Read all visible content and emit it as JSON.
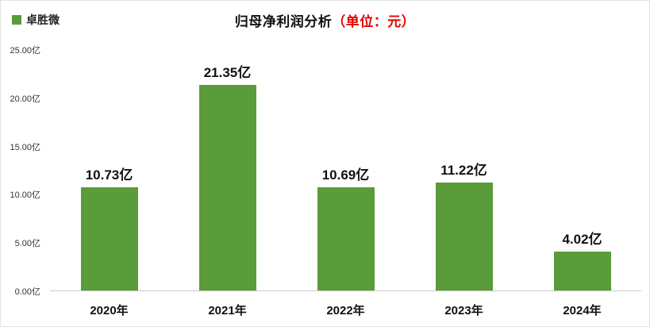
{
  "legend": {
    "label": "卓胜微",
    "color": "#5a9b3a"
  },
  "title": {
    "main": "归母净利润分析",
    "unit": "（单位：元）",
    "unit_color": "#e60000"
  },
  "chart_data": {
    "type": "bar",
    "title": "归母净利润分析（单位：元）",
    "categories": [
      "2020年",
      "2021年",
      "2022年",
      "2023年",
      "2024年"
    ],
    "values": [
      10.73,
      21.35,
      10.69,
      11.22,
      4.02
    ],
    "value_labels": [
      "10.73亿",
      "21.35亿",
      "10.69亿",
      "11.22亿",
      "4.02亿"
    ],
    "series": [
      {
        "name": "卓胜微",
        "values": [
          10.73,
          21.35,
          10.69,
          11.22,
          4.02
        ]
      }
    ],
    "xlabel": "",
    "ylabel": "",
    "ylim": [
      0,
      25
    ],
    "yticks": [
      0,
      5,
      10,
      15,
      20,
      25
    ],
    "ytick_labels": [
      "0.00亿",
      "5.00亿",
      "10.00亿",
      "15.00亿",
      "20.00亿",
      "25.00亿"
    ],
    "bar_color": "#5a9b3a",
    "grid": false,
    "legend_entries": [
      "卓胜微"
    ],
    "legend_position": "top-left"
  }
}
